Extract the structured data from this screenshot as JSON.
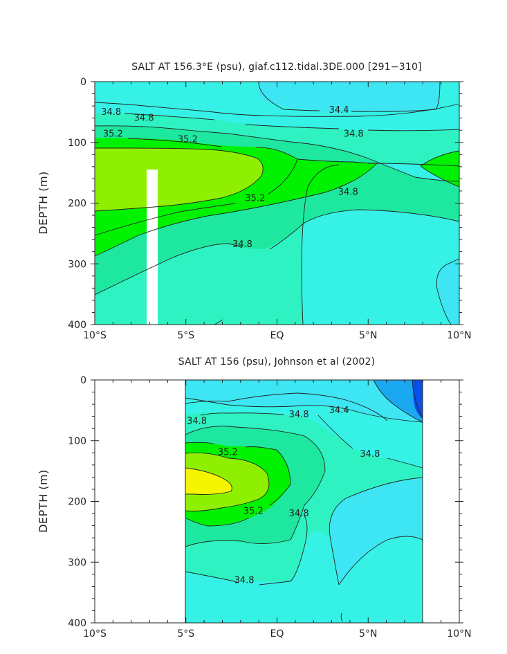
{
  "palette": {
    "c344": "#3de6f2",
    "c346": "#36f2e6",
    "c348": "#2ef2c2",
    "c350": "#1ee8a0",
    "c352": "#00f200",
    "c354": "#8ef000",
    "c356": "#f5f500",
    "fresh1": "#1aa8f0",
    "fresh2": "#0a50e6",
    "mask": "#ffffff"
  },
  "chart_data": [
    {
      "type": "contour",
      "title": "SALT AT 156.3°E (psu), giaf.c112.tidal.3DE.000 [291−310]",
      "xlabel": "",
      "ylabel": "DEPTH (m)",
      "x_ticklabels": [
        "10°S",
        "5°S",
        "EQ",
        "5°N",
        "10°N"
      ],
      "x_tickvalues": [
        -10,
        -5,
        0,
        5,
        10
      ],
      "y_ticklabels": [
        "0",
        "100",
        "200",
        "300",
        "400"
      ],
      "y_tickvalues": [
        0,
        100,
        200,
        300,
        400
      ],
      "xlim": [
        -10,
        10
      ],
      "ylim": [
        400,
        0
      ],
      "contour_labels": [
        {
          "text": "34.8",
          "lat": -9.1,
          "depth": 50
        },
        {
          "text": "34.8",
          "lat": -7.3,
          "depth": 60
        },
        {
          "text": "34.4",
          "lat": 3.4,
          "depth": 47
        },
        {
          "text": "34.8",
          "lat": 4.2,
          "depth": 86
        },
        {
          "text": "35.2",
          "lat": -9.0,
          "depth": 86
        },
        {
          "text": "35.2",
          "lat": -4.9,
          "depth": 95
        },
        {
          "text": "35.2",
          "lat": -1.2,
          "depth": 192
        },
        {
          "text": "34.8",
          "lat": 3.9,
          "depth": 182
        },
        {
          "text": "34.8",
          "lat": -1.9,
          "depth": 268
        }
      ]
    },
    {
      "type": "contour",
      "title": "SALT AT 156 (psu), Johnson et al (2002)",
      "xlabel": "",
      "ylabel": "DEPTH (m)",
      "x_ticklabels": [
        "10°S",
        "5°S",
        "EQ",
        "5°N",
        "10°N"
      ],
      "x_tickvalues": [
        -10,
        -5,
        0,
        5,
        10
      ],
      "y_ticklabels": [
        "0",
        "100",
        "200",
        "300",
        "400"
      ],
      "y_tickvalues": [
        0,
        100,
        200,
        300,
        400
      ],
      "xlim": [
        -10,
        10
      ],
      "ylim": [
        400,
        0
      ],
      "data_extent_lat": [
        -5,
        8
      ],
      "contour_labels": [
        {
          "text": "34.8",
          "lat": -4.4,
          "depth": 68
        },
        {
          "text": "34.8",
          "lat": 1.2,
          "depth": 57
        },
        {
          "text": "34.4",
          "lat": 3.4,
          "depth": 50
        },
        {
          "text": "34.8",
          "lat": 5.1,
          "depth": 122
        },
        {
          "text": "35.2",
          "lat": -2.7,
          "depth": 119
        },
        {
          "text": "35.2",
          "lat": -1.3,
          "depth": 216
        },
        {
          "text": "34.8",
          "lat": 1.2,
          "depth": 220
        },
        {
          "text": "34.8",
          "lat": -1.8,
          "depth": 330
        }
      ]
    }
  ]
}
